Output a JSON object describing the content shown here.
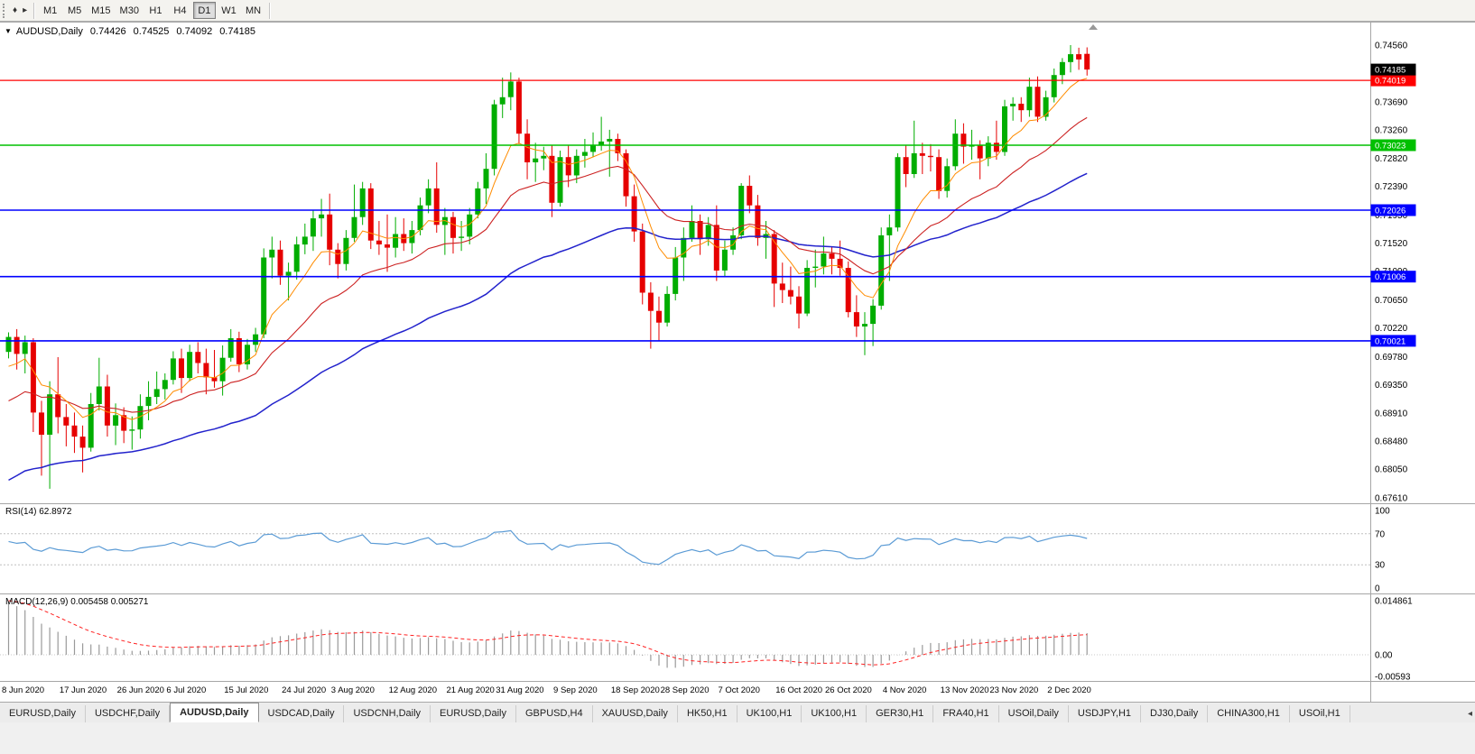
{
  "toolbar": {
    "grip_icon": "♦",
    "expand_icon": "▸",
    "timeframes": [
      "M1",
      "M5",
      "M15",
      "M30",
      "H1",
      "H4",
      "D1",
      "W1",
      "MN"
    ],
    "active_timeframe": "D1"
  },
  "chart_header": {
    "collapse_icon": "▼",
    "title": "AUDUSD,Daily",
    "open": "0.74426",
    "high": "0.74525",
    "low": "0.74092",
    "close": "0.74185"
  },
  "price_axis": {
    "ticks": [
      "0.74560",
      "0.74130",
      "0.73690",
      "0.73260",
      "0.72820",
      "0.72390",
      "0.71950",
      "0.71520",
      "0.71090",
      "0.70650",
      "0.70220",
      "0.69780",
      "0.69350",
      "0.68910",
      "0.68480",
      "0.68050",
      "0.67610"
    ],
    "current": {
      "label": "0.74185",
      "value": 0.74185,
      "bg": "#000000"
    }
  },
  "levels": [
    {
      "value": 0.74019,
      "label": "0.74019",
      "color": "#ff0000",
      "width": 1.2
    },
    {
      "value": 0.73023,
      "label": "0.73023",
      "color": "#00c000",
      "width": 1.6
    },
    {
      "value": 0.72026,
      "label": "0.72026",
      "color": "#0000ff",
      "width": 1.6
    },
    {
      "value": 0.71006,
      "label": "0.71006",
      "color": "#0000ff",
      "width": 1.6
    },
    {
      "value": 0.70021,
      "label": "0.70021",
      "color": "#0000ff",
      "width": 1.6
    }
  ],
  "rsi_panel": {
    "label": "RSI(14) 62.8972",
    "axis_labels": [
      "100",
      "70",
      "30",
      "0"
    ],
    "axis_values": [
      100,
      70,
      30,
      0
    ],
    "guides": [
      70,
      30
    ],
    "line_color": "#5b9bd5"
  },
  "macd_panel": {
    "label": "MACD(12,26,9) 0.005458 0.005271",
    "axis_labels": [
      "0.014861",
      "0.00",
      "-0.00593"
    ],
    "axis_values": [
      0.014861,
      0,
      -0.00593
    ],
    "range": [
      -0.00593,
      0.014861
    ],
    "hist_color": "#9a9a9a",
    "signal_color": "#ff2222"
  },
  "chart_data": {
    "type": "candlestick",
    "symbol": "AUDUSD",
    "period": "Daily",
    "y_axis_range": [
      0.6761,
      0.7456
    ],
    "colors": {
      "bull": "#00ad00",
      "bear": "#e60000"
    },
    "indicators": {
      "ma_fast": {
        "period": 8,
        "seed": 0.695,
        "color": "#ff8c00",
        "width": 1.0
      },
      "ma_mid": {
        "period": 21,
        "seed": 0.69,
        "color": "#cc2222",
        "width": 1.1
      },
      "ma_slow": {
        "period": 55,
        "seed": 0.678,
        "color": "#2222cc",
        "width": 1.5
      },
      "rsi": {
        "period": 14,
        "seed_gain": 0.003,
        "seed_loss": 0.002
      },
      "macd": {
        "fast": 12,
        "slow": 26,
        "signal": 9,
        "seed_fast": 0.702,
        "seed_slow": 0.686,
        "seed_signal": 0.0149
      }
    },
    "date_labels": [
      [
        0,
        "8 Jun 2020"
      ],
      [
        7,
        "17 Jun 2020"
      ],
      [
        14,
        "26 Jun 2020"
      ],
      [
        20,
        "6 Jul 2020"
      ],
      [
        27,
        "15 Jul 2020"
      ],
      [
        34,
        "24 Jul 2020"
      ],
      [
        40,
        "3 Aug 2020"
      ],
      [
        47,
        "12 Aug 2020"
      ],
      [
        54,
        "21 Aug 2020"
      ],
      [
        60,
        "31 Aug 2020"
      ],
      [
        67,
        "9 Sep 2020"
      ],
      [
        74,
        "18 Sep 2020"
      ],
      [
        80,
        "28 Sep 2020"
      ],
      [
        87,
        "7 Oct 2020"
      ],
      [
        94,
        "16 Oct 2020"
      ],
      [
        100,
        "26 Oct 2020"
      ],
      [
        107,
        "4 Nov 2020"
      ],
      [
        114,
        "13 Nov 2020"
      ],
      [
        120,
        "23 Nov 2020"
      ],
      [
        127,
        "2 Dec 2020"
      ]
    ],
    "candles": [
      [
        0.6985,
        0.7015,
        0.6975,
        0.7008
      ],
      [
        0.7008,
        0.702,
        0.6958,
        0.6982
      ],
      [
        0.6982,
        0.701,
        0.6952,
        0.7
      ],
      [
        0.7,
        0.7006,
        0.6862,
        0.6892
      ],
      [
        0.6892,
        0.691,
        0.6795,
        0.6858
      ],
      [
        0.6858,
        0.694,
        0.6775,
        0.692
      ],
      [
        0.692,
        0.6977,
        0.686,
        0.6885
      ],
      [
        0.6885,
        0.6905,
        0.684,
        0.6872
      ],
      [
        0.6872,
        0.6892,
        0.683,
        0.6855
      ],
      [
        0.6855,
        0.6872,
        0.68,
        0.6838
      ],
      [
        0.6838,
        0.6922,
        0.6832,
        0.6905
      ],
      [
        0.6905,
        0.6976,
        0.6895,
        0.6932
      ],
      [
        0.6932,
        0.695,
        0.6855,
        0.6872
      ],
      [
        0.6872,
        0.6906,
        0.6842,
        0.6888
      ],
      [
        0.6888,
        0.69,
        0.6845,
        0.6864
      ],
      [
        0.6864,
        0.6886,
        0.6835,
        0.6866
      ],
      [
        0.6866,
        0.692,
        0.6852,
        0.6902
      ],
      [
        0.6902,
        0.694,
        0.688,
        0.6916
      ],
      [
        0.6916,
        0.6955,
        0.6905,
        0.6928
      ],
      [
        0.6928,
        0.6952,
        0.6912,
        0.6942
      ],
      [
        0.6942,
        0.6986,
        0.6935,
        0.6975
      ],
      [
        0.6975,
        0.699,
        0.6922,
        0.6945
      ],
      [
        0.6945,
        0.6996,
        0.694,
        0.6985
      ],
      [
        0.6985,
        0.7,
        0.6952,
        0.6968
      ],
      [
        0.6968,
        0.699,
        0.692,
        0.6946
      ],
      [
        0.6946,
        0.6988,
        0.693,
        0.694
      ],
      [
        0.694,
        0.6995,
        0.6918,
        0.6976
      ],
      [
        0.6976,
        0.702,
        0.697,
        0.7006
      ],
      [
        0.7006,
        0.7016,
        0.6954,
        0.6966
      ],
      [
        0.6966,
        0.7005,
        0.6958,
        0.6996
      ],
      [
        0.6996,
        0.7022,
        0.6985,
        0.7012
      ],
      [
        0.7012,
        0.7144,
        0.7006,
        0.713
      ],
      [
        0.713,
        0.7162,
        0.7098,
        0.7142
      ],
      [
        0.7142,
        0.7156,
        0.7088,
        0.7102
      ],
      [
        0.7102,
        0.7122,
        0.7064,
        0.7108
      ],
      [
        0.7108,
        0.7162,
        0.7096,
        0.715
      ],
      [
        0.715,
        0.7182,
        0.7135,
        0.7162
      ],
      [
        0.7162,
        0.7202,
        0.714,
        0.719
      ],
      [
        0.719,
        0.722,
        0.7162,
        0.7196
      ],
      [
        0.7196,
        0.7228,
        0.7118,
        0.7142
      ],
      [
        0.7142,
        0.7152,
        0.7098,
        0.712
      ],
      [
        0.712,
        0.7172,
        0.711,
        0.716
      ],
      [
        0.716,
        0.7242,
        0.7154,
        0.7192
      ],
      [
        0.7192,
        0.7246,
        0.718,
        0.7236
      ],
      [
        0.7236,
        0.7244,
        0.7143,
        0.7156
      ],
      [
        0.7156,
        0.7186,
        0.7134,
        0.715
      ],
      [
        0.715,
        0.7196,
        0.7108,
        0.7145
      ],
      [
        0.7145,
        0.7192,
        0.713,
        0.7166
      ],
      [
        0.7166,
        0.719,
        0.714,
        0.7152
      ],
      [
        0.7152,
        0.7186,
        0.7136,
        0.7172
      ],
      [
        0.7172,
        0.7222,
        0.7164,
        0.721
      ],
      [
        0.721,
        0.725,
        0.7198,
        0.7236
      ],
      [
        0.7236,
        0.7276,
        0.7168,
        0.718
      ],
      [
        0.718,
        0.7206,
        0.7134,
        0.7192
      ],
      [
        0.7192,
        0.72,
        0.7136,
        0.716
      ],
      [
        0.716,
        0.7186,
        0.714,
        0.7162
      ],
      [
        0.7162,
        0.7206,
        0.715,
        0.7196
      ],
      [
        0.7196,
        0.7246,
        0.719,
        0.7236
      ],
      [
        0.7236,
        0.729,
        0.7212,
        0.7266
      ],
      [
        0.7266,
        0.7372,
        0.7256,
        0.7365
      ],
      [
        0.7365,
        0.7406,
        0.7344,
        0.7376
      ],
      [
        0.7376,
        0.7414,
        0.7356,
        0.74
      ],
      [
        0.74,
        0.7406,
        0.7304,
        0.732
      ],
      [
        0.732,
        0.7342,
        0.725,
        0.7276
      ],
      [
        0.7276,
        0.7306,
        0.7246,
        0.7282
      ],
      [
        0.7282,
        0.73,
        0.7264,
        0.7286
      ],
      [
        0.7286,
        0.7302,
        0.7192,
        0.7214
      ],
      [
        0.7214,
        0.7294,
        0.7208,
        0.7284
      ],
      [
        0.7284,
        0.7302,
        0.7238,
        0.7256
      ],
      [
        0.7256,
        0.7296,
        0.7244,
        0.7286
      ],
      [
        0.7286,
        0.7312,
        0.7268,
        0.7292
      ],
      [
        0.7292,
        0.7322,
        0.7284,
        0.7302
      ],
      [
        0.7302,
        0.7346,
        0.7294,
        0.7308
      ],
      [
        0.7308,
        0.7326,
        0.7254,
        0.7312
      ],
      [
        0.7312,
        0.732,
        0.7278,
        0.729
      ],
      [
        0.729,
        0.7296,
        0.7208,
        0.7224
      ],
      [
        0.7224,
        0.7242,
        0.7154,
        0.717
      ],
      [
        0.717,
        0.7182,
        0.7058,
        0.7076
      ],
      [
        0.7076,
        0.7092,
        0.699,
        0.7048
      ],
      [
        0.7048,
        0.707,
        0.7002,
        0.703
      ],
      [
        0.703,
        0.7086,
        0.7024,
        0.7074
      ],
      [
        0.7074,
        0.7146,
        0.7064,
        0.713
      ],
      [
        0.713,
        0.7176,
        0.7094,
        0.716
      ],
      [
        0.716,
        0.721,
        0.7154,
        0.7186
      ],
      [
        0.7186,
        0.7196,
        0.7134,
        0.7158
      ],
      [
        0.7158,
        0.7192,
        0.7148,
        0.718
      ],
      [
        0.718,
        0.721,
        0.7094,
        0.711
      ],
      [
        0.711,
        0.7156,
        0.71,
        0.7142
      ],
      [
        0.7142,
        0.7176,
        0.7134,
        0.7164
      ],
      [
        0.7164,
        0.7244,
        0.7158,
        0.724
      ],
      [
        0.724,
        0.7256,
        0.7198,
        0.721
      ],
      [
        0.721,
        0.7226,
        0.7148,
        0.716
      ],
      [
        0.716,
        0.7186,
        0.7128,
        0.7166
      ],
      [
        0.7166,
        0.7172,
        0.7054,
        0.709
      ],
      [
        0.709,
        0.7122,
        0.706,
        0.708
      ],
      [
        0.708,
        0.7116,
        0.7058,
        0.707
      ],
      [
        0.707,
        0.7086,
        0.7021,
        0.7044
      ],
      [
        0.7044,
        0.7126,
        0.704,
        0.7114
      ],
      [
        0.7114,
        0.7142,
        0.7084,
        0.7116
      ],
      [
        0.7116,
        0.7162,
        0.7104,
        0.7136
      ],
      [
        0.7136,
        0.7146,
        0.7104,
        0.7128
      ],
      [
        0.7128,
        0.7156,
        0.7102,
        0.7114
      ],
      [
        0.7114,
        0.7124,
        0.7038,
        0.7046
      ],
      [
        0.7046,
        0.7072,
        0.7008,
        0.7024
      ],
      [
        0.7024,
        0.7046,
        0.698,
        0.7028
      ],
      [
        0.7028,
        0.7066,
        0.6994,
        0.7056
      ],
      [
        0.7056,
        0.7176,
        0.705,
        0.7164
      ],
      [
        0.7164,
        0.7196,
        0.7094,
        0.7176
      ],
      [
        0.7176,
        0.729,
        0.717,
        0.7284
      ],
      [
        0.7284,
        0.7302,
        0.7238,
        0.7258
      ],
      [
        0.7258,
        0.734,
        0.7252,
        0.729
      ],
      [
        0.729,
        0.7306,
        0.7258,
        0.7286
      ],
      [
        0.7286,
        0.7304,
        0.7262,
        0.7284
      ],
      [
        0.7284,
        0.7296,
        0.722,
        0.7232
      ],
      [
        0.7232,
        0.7282,
        0.7222,
        0.727
      ],
      [
        0.727,
        0.7342,
        0.7264,
        0.732
      ],
      [
        0.732,
        0.7336,
        0.7274,
        0.73
      ],
      [
        0.73,
        0.7326,
        0.728,
        0.7302
      ],
      [
        0.7302,
        0.731,
        0.725,
        0.7282
      ],
      [
        0.7282,
        0.7316,
        0.727,
        0.7306
      ],
      [
        0.7306,
        0.734,
        0.728,
        0.7292
      ],
      [
        0.7292,
        0.7372,
        0.7286,
        0.7362
      ],
      [
        0.7362,
        0.7376,
        0.734,
        0.7366
      ],
      [
        0.7366,
        0.7376,
        0.7338,
        0.7356
      ],
      [
        0.7356,
        0.7406,
        0.7346,
        0.7392
      ],
      [
        0.7392,
        0.7408,
        0.7338,
        0.7346
      ],
      [
        0.7346,
        0.7386,
        0.734,
        0.7376
      ],
      [
        0.7376,
        0.742,
        0.7368,
        0.741
      ],
      [
        0.741,
        0.7436,
        0.7396,
        0.743
      ],
      [
        0.743,
        0.7456,
        0.7414,
        0.7442
      ],
      [
        0.7442,
        0.7452,
        0.7418,
        0.7434
      ],
      [
        0.74426,
        0.74525,
        0.74092,
        0.74185
      ]
    ]
  },
  "tabs": {
    "items": [
      "EURUSD,Daily",
      "USDCHF,Daily",
      "AUDUSD,Daily",
      "USDCAD,Daily",
      "USDCNH,Daily",
      "EURUSD,Daily",
      "GBPUSD,H4",
      "XAUUSD,Daily",
      "HK50,H1",
      "UK100,H1",
      "UK100,H1",
      "GER30,H1",
      "FRA40,H1",
      "USOil,Daily",
      "USDJPY,H1",
      "DJ30,Daily",
      "CHINA300,H1",
      "USOil,H1"
    ],
    "active_index": 2,
    "scroll_icon": "◂"
  }
}
